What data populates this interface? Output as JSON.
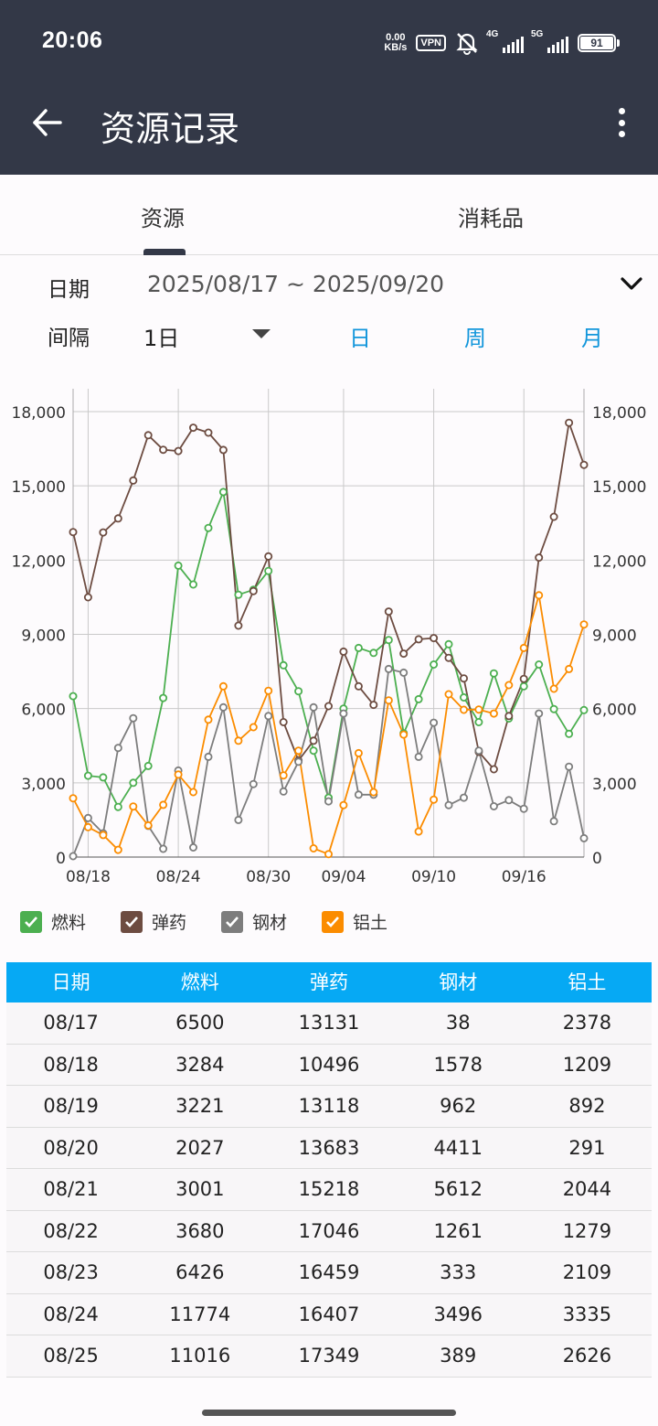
{
  "status_bar": {
    "time": "20:06",
    "net_speed_value": "0.00",
    "net_speed_unit": "KB/s",
    "vpn": "VPN",
    "sim1": "4G",
    "sim2": "5G",
    "battery": "91"
  },
  "app_bar": {
    "title": "资源记录"
  },
  "tabs": [
    {
      "label": "资源"
    },
    {
      "label": "消耗品"
    }
  ],
  "filters": {
    "date_label": "日期",
    "date_range": "2025/08/17  ~  2025/09/20",
    "interval_label": "间隔",
    "interval_value": "1日",
    "period_buttons": [
      "日",
      "周",
      "月"
    ]
  },
  "legend": [
    {
      "label": "燃料",
      "color": "#4caf50"
    },
    {
      "label": "弹药",
      "color": "#6d4c41"
    },
    {
      "label": "钢材",
      "color": "#7d7d7d"
    },
    {
      "label": "铝土",
      "color": "#fb8c00"
    }
  ],
  "chart_data": {
    "type": "line",
    "x": [
      "08/17",
      "08/18",
      "08/19",
      "08/20",
      "08/21",
      "08/22",
      "08/23",
      "08/24",
      "08/25",
      "08/26",
      "08/27",
      "08/28",
      "08/29",
      "08/30",
      "08/31",
      "09/01",
      "09/02",
      "09/03",
      "09/04",
      "09/05",
      "09/06",
      "09/07",
      "09/08",
      "09/09",
      "09/10",
      "09/11",
      "09/12",
      "09/13",
      "09/14",
      "09/15",
      "09/16",
      "09/17",
      "09/18",
      "09/19",
      "09/20"
    ],
    "x_tick_labels": [
      "08/18",
      "08/24",
      "08/30",
      "09/04",
      "09/10",
      "09/16"
    ],
    "y_ticks": [
      "18,000",
      "15,000",
      "12,000",
      "9,000",
      "6,000",
      "3,000",
      "0"
    ],
    "ylim": [
      0,
      18000
    ],
    "grid": true,
    "series": [
      {
        "name": "燃料",
        "color": "#4caf50",
        "values": [
          6500,
          3284,
          3221,
          2027,
          3001,
          3680,
          6426,
          11774,
          11016,
          13300,
          14750,
          10600,
          10800,
          11560,
          7750,
          6700,
          4300,
          2400,
          6000,
          8450,
          8250,
          8770,
          5000,
          6380,
          7780,
          8600,
          6450,
          5450,
          7420,
          5600,
          6900,
          7780,
          5980,
          4980,
          5940
        ]
      },
      {
        "name": "弹药",
        "color": "#6d4c41",
        "values": [
          13131,
          10496,
          13118,
          13683,
          15218,
          17046,
          16459,
          16407,
          17349,
          17150,
          16450,
          9350,
          10750,
          12150,
          5450,
          3900,
          4700,
          6100,
          8300,
          6900,
          6150,
          9920,
          8220,
          8800,
          8850,
          8050,
          7220,
          4250,
          3550,
          5700,
          7200,
          12100,
          13750,
          17550,
          15850
        ]
      },
      {
        "name": "钢材",
        "color": "#7d7d7d",
        "values": [
          38,
          1578,
          962,
          4411,
          5612,
          1261,
          333,
          3496,
          389,
          4050,
          6050,
          1500,
          2950,
          5700,
          2650,
          3850,
          6050,
          2250,
          5800,
          2520,
          2520,
          7600,
          7450,
          4050,
          5430,
          2100,
          2400,
          4300,
          2050,
          2300,
          1950,
          5800,
          1450,
          3650,
          760
        ]
      },
      {
        "name": "铝土",
        "color": "#fb8c00",
        "values": [
          2378,
          1209,
          892,
          291,
          2044,
          1279,
          2109,
          3335,
          2626,
          5550,
          6900,
          4700,
          5250,
          6720,
          3300,
          4300,
          350,
          120,
          2100,
          4200,
          2620,
          6330,
          4950,
          1030,
          2320,
          6580,
          5950,
          5960,
          5800,
          6950,
          8450,
          10580,
          6800,
          7600,
          9400
        ]
      }
    ]
  },
  "table": {
    "headers": [
      "日期",
      "燃料",
      "弹药",
      "钢材",
      "铝土"
    ],
    "rows": [
      [
        "08/17",
        "6500",
        "13131",
        "38",
        "2378"
      ],
      [
        "08/18",
        "3284",
        "10496",
        "1578",
        "1209"
      ],
      [
        "08/19",
        "3221",
        "13118",
        "962",
        "892"
      ],
      [
        "08/20",
        "2027",
        "13683",
        "4411",
        "291"
      ],
      [
        "08/21",
        "3001",
        "15218",
        "5612",
        "2044"
      ],
      [
        "08/22",
        "3680",
        "17046",
        "1261",
        "1279"
      ],
      [
        "08/23",
        "6426",
        "16459",
        "333",
        "2109"
      ],
      [
        "08/24",
        "11774",
        "16407",
        "3496",
        "3335"
      ],
      [
        "08/25",
        "11016",
        "17349",
        "389",
        "2626"
      ]
    ]
  }
}
